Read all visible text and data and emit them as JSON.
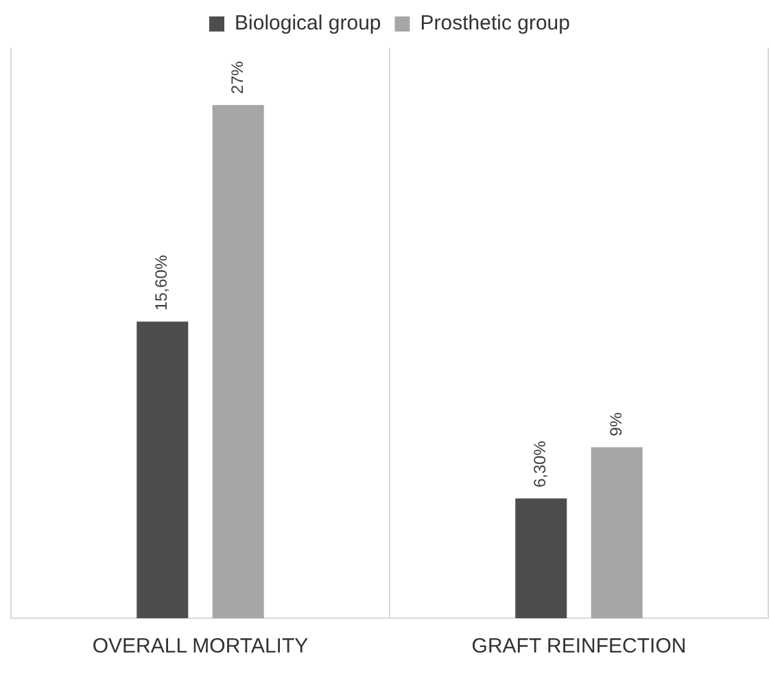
{
  "chart_data": {
    "type": "bar",
    "categories": [
      "OVERALL MORTALITY",
      "GRAFT REINFECTION"
    ],
    "series": [
      {
        "name": "Biological group",
        "color": "#4d4d4d",
        "values": [
          15.6,
          6.3
        ],
        "value_labels": [
          "15,60%",
          "6,30%"
        ]
      },
      {
        "name": "Prosthetic group",
        "color": "#a6a6a6",
        "values": [
          27,
          9
        ],
        "value_labels": [
          "27%",
          "9%"
        ]
      }
    ],
    "legend": "top",
    "grid": "x"
  }
}
